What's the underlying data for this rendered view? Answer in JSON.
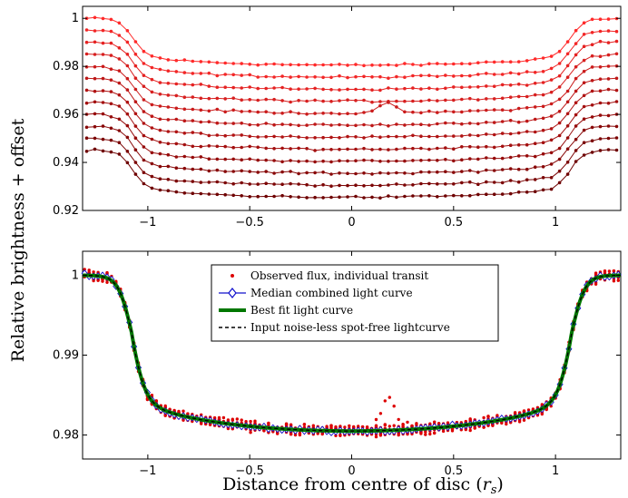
{
  "chart_data": [
    {
      "type": "line",
      "panel": "top",
      "ylabel": "Relative brightness + offset",
      "xlim": [
        -1.32,
        1.32
      ],
      "ylim": [
        0.92,
        1.005
      ],
      "xticks": [
        "−1",
        "−0.5",
        "0",
        "0.5",
        "1"
      ],
      "xtick_values": [
        -1,
        -0.5,
        0,
        0.5,
        1
      ],
      "yticks": [
        "0.92",
        "0.94",
        "0.96",
        "0.98",
        "1"
      ],
      "ytick_values": [
        0.92,
        0.94,
        0.96,
        0.98,
        1.0
      ],
      "grid": false,
      "n_transits": 12,
      "offset_top": 1.0,
      "offset_step": 0.005,
      "depth": 0.0195,
      "limb_coeff": 0.27,
      "ingress_half_width": 1.08,
      "ingress_width": 0.13,
      "color_top": "#ff2a2a",
      "color_bottom": "#6e0000",
      "spot_feature": {
        "x": 0.18,
        "amplitude": 0.004,
        "width": 0.06
      }
    },
    {
      "type": "scatter",
      "panel": "bottom",
      "xlabel": "Distance from centre of disc ($r_s$)",
      "xlabel_main": "Distance from centre of disc (",
      "xlabel_var": "r",
      "xlabel_sub": "s",
      "xlabel_close": ")",
      "xlim": [
        -1.32,
        1.32
      ],
      "ylim": [
        0.977,
        1.003
      ],
      "xticks": [
        "−1",
        "−0.5",
        "0",
        "0.5",
        "1"
      ],
      "xtick_values": [
        -1,
        -0.5,
        0,
        0.5,
        1
      ],
      "yticks": [
        "0.98",
        "0.99",
        "1"
      ],
      "ytick_values": [
        0.98,
        0.99,
        1.0
      ],
      "grid": false,
      "baseline": 1.0,
      "min_flux": 0.9805,
      "legend": {
        "placement": "top-center",
        "entries": [
          {
            "label": "Observed flux, individual transit",
            "color": "#dd0000",
            "style": "dot"
          },
          {
            "label": "Median combined light curve",
            "color": "#1010cc",
            "style": "line-diamond"
          },
          {
            "label": "Best fit light curve",
            "color": "#007700",
            "style": "thick-line"
          },
          {
            "label": "Input noise-less spot-free lightcurve",
            "color": "#000000",
            "style": "dashed"
          }
        ]
      }
    }
  ]
}
